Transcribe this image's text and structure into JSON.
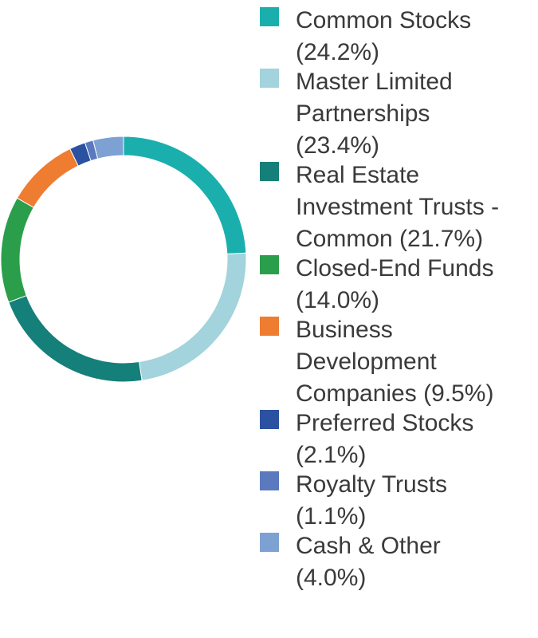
{
  "chart_data": {
    "type": "pie",
    "donut": true,
    "title": "",
    "legend_position": "right",
    "categories": [
      "Common Stocks",
      "Master Limited Partnerships",
      "Real Estate Investment Trusts - Common",
      "Closed-End Funds",
      "Business Development Companies",
      "Preferred Stocks",
      "Royalty Trusts",
      "Cash & Other"
    ],
    "values": [
      24.2,
      23.4,
      21.7,
      14.0,
      9.5,
      2.1,
      1.1,
      4.0
    ],
    "colors": [
      "#1aafad",
      "#a3d3dc",
      "#157f7a",
      "#2a9e4a",
      "#ee7c31",
      "#2b52a0",
      "#5b79bf",
      "#7ea1d3"
    ],
    "legend": [
      {
        "lines": [
          "Common Stocks",
          "(24.2%)"
        ]
      },
      {
        "lines": [
          "Master Limited",
          "Partnerships",
          "(23.4%)"
        ]
      },
      {
        "lines": [
          "Real Estate",
          "Investment Trusts -",
          "Common (21.7%)"
        ]
      },
      {
        "lines": [
          "Closed-End Funds",
          "(14.0%)"
        ]
      },
      {
        "lines": [
          "Business",
          "Development",
          "Companies (9.5%)"
        ]
      },
      {
        "lines": [
          "Preferred Stocks",
          "(2.1%)"
        ]
      },
      {
        "lines": [
          "Royalty Trusts",
          "(1.1%)"
        ]
      },
      {
        "lines": [
          "Cash & Other",
          "(4.0%)"
        ]
      }
    ]
  }
}
